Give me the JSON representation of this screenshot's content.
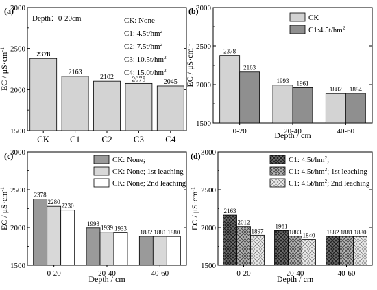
{
  "patterns": {
    "CK": "plain-gray",
    "C1": "cross-hatch",
    "none": "plain-gray",
    "first": "light-gray",
    "second": "white",
    "c1_none": "dense-cross-hatch",
    "c1_first": "medium-cross-hatch",
    "c1_second": "light-cross-hatch"
  },
  "chart_data": [
    {
      "panel": "(a)",
      "type": "bar",
      "categories": [
        "CK",
        "C1",
        "C2",
        "C3",
        "C4"
      ],
      "series": [
        {
          "values": [
            2378,
            2163,
            2102,
            2075,
            2045
          ],
          "labels": [
            "2378",
            "2163",
            "2102",
            "2075",
            "2045"
          ],
          "pattern": "CK"
        }
      ],
      "ylabel": "EC / μS·cm",
      "ylabel_sup": "-1",
      "ylim": [
        1500,
        3000
      ],
      "yticks": [
        1500,
        2000,
        2500,
        3000
      ],
      "xlabel": "",
      "note": "Depth：0-20cm",
      "legend": [
        {
          "text": "CK: None"
        },
        {
          "text": "C1: 4.5t/hm",
          "sup": "2"
        },
        {
          "text": "C2: 7.5t/hm",
          "sup": "2"
        },
        {
          "text": "C3: 10.5t/hm",
          "sup": "2"
        },
        {
          "text": "C4: 15.0t/hm",
          "sup": "2"
        }
      ],
      "legend_position": "top-right"
    },
    {
      "panel": "(b)",
      "type": "bar",
      "categories": [
        "0-20",
        "20-40",
        "40-60"
      ],
      "series": [
        {
          "name": "CK",
          "values": [
            2378,
            1993,
            1882
          ],
          "labels": [
            "2378",
            "1993",
            "1882"
          ],
          "pattern": "CK"
        },
        {
          "name": "C1:4.5t/hm",
          "name_sup": "2",
          "values": [
            2163,
            1961,
            1884
          ],
          "labels": [
            "2163",
            "1961",
            "1884"
          ],
          "pattern": "C1"
        }
      ],
      "ylabel": "EC / μS·cm",
      "ylabel_sup": "-1",
      "ylim": [
        1500,
        3000
      ],
      "yticks": [
        1500,
        2000,
        2500,
        3000
      ],
      "xlabel": "Depth / cm",
      "legend_position": "top-right"
    },
    {
      "panel": "(c)",
      "type": "bar",
      "categories": [
        "0-20",
        "20-40",
        "40-60"
      ],
      "series": [
        {
          "name": "CK: None;",
          "values": [
            2378,
            1993,
            1882
          ],
          "labels": [
            "2378",
            "1993",
            "1882"
          ],
          "pattern": "none"
        },
        {
          "name": "CK: None; 1st leaching",
          "values": [
            2280,
            1939,
            1881
          ],
          "labels": [
            "2280",
            "1939",
            "1881"
          ],
          "pattern": "first"
        },
        {
          "name": "CK: None; 2nd leaching",
          "values": [
            2230,
            1933,
            1880
          ],
          "labels": [
            "2230",
            "1933",
            "1880"
          ],
          "pattern": "second"
        }
      ],
      "ylabel": "EC / μS·cm",
      "ylabel_sup": "-1",
      "ylim": [
        1500,
        3000
      ],
      "yticks": [
        1500,
        2000,
        2500,
        3000
      ],
      "xlabel": "Depth / cm",
      "legend_position": "top-right"
    },
    {
      "panel": "(d)",
      "type": "bar",
      "categories": [
        "0-20",
        "20-40",
        "40-60"
      ],
      "series": [
        {
          "name": "C1: 4.5t/hm",
          "name_sup": "2",
          "name_after": ";",
          "values": [
            2163,
            1961,
            1882
          ],
          "labels": [
            "2163",
            "1961",
            "1882"
          ],
          "pattern": "c1_none"
        },
        {
          "name": "C1: 4.5t/hm",
          "name_sup": "2",
          "name_after": "; 1st leaching",
          "values": [
            2012,
            1883,
            1881
          ],
          "labels": [
            "2012",
            "1883",
            "1881"
          ],
          "pattern": "c1_first"
        },
        {
          "name": "C1: 4.5t/hm",
          "name_sup": "2",
          "name_after": "; 2nd leaching",
          "values": [
            1897,
            1840,
            1880
          ],
          "labels": [
            "1897",
            "1840",
            "1880"
          ],
          "pattern": "c1_second"
        }
      ],
      "ylabel": "EC / μS·cm",
      "ylabel_sup": "-1",
      "ylim": [
        1500,
        3000
      ],
      "yticks": [
        1500,
        2000,
        2500,
        3000
      ],
      "xlabel": "Depth / cm",
      "legend_position": "top-right"
    }
  ]
}
